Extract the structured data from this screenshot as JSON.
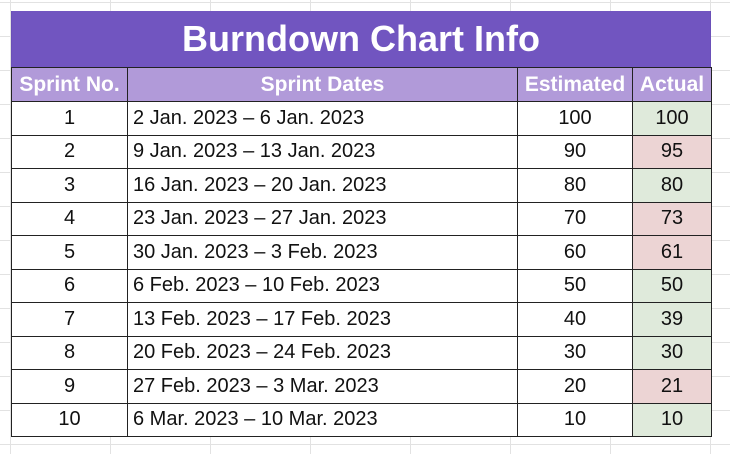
{
  "title": "Burndown Chart Info",
  "headers": [
    "Sprint No.",
    "Sprint Dates",
    "Estimated",
    "Actual"
  ],
  "rows": [
    {
      "sprint": "1",
      "dates": "2 Jan. 2023 – 6 Jan. 2023",
      "estimated": "100",
      "actual": "100",
      "status": "green"
    },
    {
      "sprint": "2",
      "dates": "9 Jan. 2023 – 13 Jan. 2023",
      "estimated": "90",
      "actual": "95",
      "status": "red"
    },
    {
      "sprint": "3",
      "dates": "16 Jan. 2023 – 20 Jan. 2023",
      "estimated": "80",
      "actual": "80",
      "status": "green"
    },
    {
      "sprint": "4",
      "dates": "23 Jan. 2023 – 27 Jan. 2023",
      "estimated": "70",
      "actual": "73",
      "status": "red"
    },
    {
      "sprint": "5",
      "dates": "30 Jan. 2023 – 3 Feb. 2023",
      "estimated": "60",
      "actual": "61",
      "status": "red"
    },
    {
      "sprint": "6",
      "dates": "6 Feb. 2023 – 10 Feb. 2023",
      "estimated": "50",
      "actual": "50",
      "status": "green"
    },
    {
      "sprint": "7",
      "dates": "13 Feb. 2023 – 17 Feb. 2023",
      "estimated": "40",
      "actual": "39",
      "status": "green"
    },
    {
      "sprint": "8",
      "dates": "20 Feb. 2023 – 24 Feb. 2023",
      "estimated": "30",
      "actual": "30",
      "status": "green"
    },
    {
      "sprint": "9",
      "dates": "27 Feb. 2023 – 3 Mar. 2023",
      "estimated": "20",
      "actual": "21",
      "status": "red"
    },
    {
      "sprint": "10",
      "dates": "6 Mar. 2023 – 10 Mar. 2023",
      "estimated": "10",
      "actual": "10",
      "status": "green"
    }
  ],
  "colors": {
    "title_bg": "#7155c0",
    "header_bg": "#b19ad9",
    "on_or_below_estimate": "#dfeadb",
    "above_estimate": "#ecd4d4"
  }
}
